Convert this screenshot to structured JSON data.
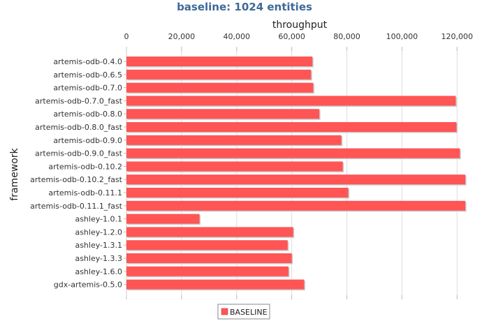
{
  "chart_data": {
    "type": "bar",
    "orientation": "horizontal",
    "title": "baseline: 1024 entities",
    "xlabel": "throughput",
    "ylabel": "framework",
    "xlim": [
      0,
      125000
    ],
    "x_ticks": [
      0,
      20000,
      40000,
      60000,
      80000,
      100000,
      120000
    ],
    "x_tick_labels": [
      "0",
      "20,000",
      "40,000",
      "60,000",
      "80,000",
      "100,000",
      "120,000"
    ],
    "grid": true,
    "legend_position": "bottom-center",
    "categories": [
      "artemis-odb-0.4.0",
      "artemis-odb-0.6.5",
      "artemis-odb-0.7.0",
      "artemis-odb-0.7.0_fast",
      "artemis-odb-0.8.0",
      "artemis-odb-0.8.0_fast",
      "artemis-odb-0.9.0",
      "artemis-odb-0.9.0_fast",
      "artemis-odb-0.10.2",
      "artemis-odb-0.10.2_fast",
      "artemis-odb-0.11.1",
      "artemis-odb-0.11.1_fast",
      "ashley-1.0.1",
      "ashley-1.2.0",
      "ashley-1.3.1",
      "ashley-1.3.3",
      "ashley-1.6.0",
      "gdx-artemis-0.5.0"
    ],
    "series": [
      {
        "name": "BASELINE",
        "color": "#ff5555",
        "values": [
          67500,
          67000,
          67800,
          119500,
          70000,
          119800,
          78000,
          121000,
          78500,
          123000,
          80500,
          123000,
          26500,
          60500,
          58500,
          60000,
          58800,
          64500
        ]
      }
    ]
  }
}
